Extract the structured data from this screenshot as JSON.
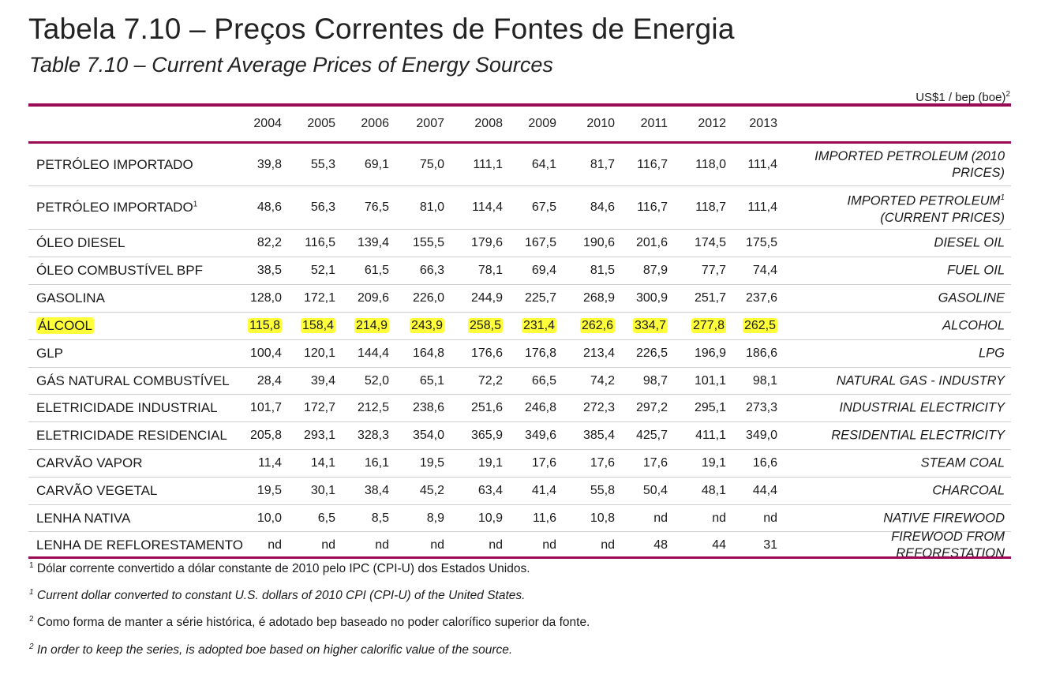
{
  "title": "Tabela 7.10 – Preços Correntes de Fontes de Energia",
  "subtitle": "Table 7.10 – Current Average Prices of Energy Sources",
  "unit": "US$1 / bep (boe)",
  "unit_sup": "2",
  "highlight_color": "#ffff3a",
  "accent_color": "#9b0b55",
  "years": [
    "2004",
    "2005",
    "2006",
    "2007",
    "2008",
    "2009",
    "2010",
    "2011",
    "2012",
    "2013"
  ],
  "rows": [
    {
      "pt": "PETRÓLEO IMPORTADO",
      "pt_sup": "",
      "en": "IMPORTED PETROLEUM (2010 PRICES)",
      "en_sup": "",
      "values": [
        "39,8",
        "55,3",
        "69,1",
        "75,0",
        "111,1",
        "64,1",
        "81,7",
        "116,7",
        "118,0",
        "111,4"
      ],
      "highlighted": false
    },
    {
      "pt": "PETRÓLEO IMPORTADO",
      "pt_sup": "1",
      "en": "IMPORTED PETROLEUM",
      "en_sup": "1",
      "en_rest": " (CURRENT PRICES)",
      "values": [
        "48,6",
        "56,3",
        "76,5",
        "81,0",
        "114,4",
        "67,5",
        "84,6",
        "116,7",
        "118,7",
        "111,4"
      ],
      "highlighted": false
    },
    {
      "pt": "ÓLEO DIESEL",
      "pt_sup": "",
      "en": "DIESEL OIL",
      "en_sup": "",
      "values": [
        "82,2",
        "116,5",
        "139,4",
        "155,5",
        "179,6",
        "167,5",
        "190,6",
        "201,6",
        "174,5",
        "175,5"
      ],
      "highlighted": false
    },
    {
      "pt": "ÓLEO COMBUSTÍVEL BPF",
      "pt_sup": "",
      "en": "FUEL OIL",
      "en_sup": "",
      "values": [
        "38,5",
        "52,1",
        "61,5",
        "66,3",
        "78,1",
        "69,4",
        "81,5",
        "87,9",
        "77,7",
        "74,4"
      ],
      "highlighted": false
    },
    {
      "pt": "GASOLINA",
      "pt_sup": "",
      "en": "GASOLINE",
      "en_sup": "",
      "values": [
        "128,0",
        "172,1",
        "209,6",
        "226,0",
        "244,9",
        "225,7",
        "268,9",
        "300,9",
        "251,7",
        "237,6"
      ],
      "highlighted": false
    },
    {
      "pt": "ÁLCOOL",
      "pt_sup": "",
      "en": "ALCOHOL",
      "en_sup": "",
      "values": [
        "115,8",
        "158,4",
        "214,9",
        "243,9",
        "258,5",
        "231,4",
        "262,6",
        "334,7",
        "277,8",
        "262,5"
      ],
      "highlighted": true
    },
    {
      "pt": "GLP",
      "pt_sup": "",
      "en": "LPG",
      "en_sup": "",
      "values": [
        "100,4",
        "120,1",
        "144,4",
        "164,8",
        "176,6",
        "176,8",
        "213,4",
        "226,5",
        "196,9",
        "186,6"
      ],
      "highlighted": false
    },
    {
      "pt": "GÁS NATURAL COMBUSTÍVEL",
      "pt_sup": "",
      "en": "NATURAL GAS - INDUSTRY",
      "en_sup": "",
      "values": [
        "28,4",
        "39,4",
        "52,0",
        "65,1",
        "72,2",
        "66,5",
        "74,2",
        "98,7",
        "101,1",
        "98,1"
      ],
      "highlighted": false
    },
    {
      "pt": "ELETRICIDADE INDUSTRIAL",
      "pt_sup": "",
      "en": "INDUSTRIAL ELECTRICITY",
      "en_sup": "",
      "values": [
        "101,7",
        "172,7",
        "212,5",
        "238,6",
        "251,6",
        "246,8",
        "272,3",
        "297,2",
        "295,1",
        "273,3"
      ],
      "highlighted": false
    },
    {
      "pt": "ELETRICIDADE RESIDENCIAL",
      "pt_sup": "",
      "en": "RESIDENTIAL ELECTRICITY",
      "en_sup": "",
      "values": [
        "205,8",
        "293,1",
        "328,3",
        "354,0",
        "365,9",
        "349,6",
        "385,4",
        "425,7",
        "411,1",
        "349,0"
      ],
      "highlighted": false
    },
    {
      "pt": "CARVÃO VAPOR",
      "pt_sup": "",
      "en": "STEAM COAL",
      "en_sup": "",
      "values": [
        "11,4",
        "14,1",
        "16,1",
        "19,5",
        "19,1",
        "17,6",
        "17,6",
        "17,6",
        "19,1",
        "16,6"
      ],
      "highlighted": false
    },
    {
      "pt": "CARVÃO VEGETAL",
      "pt_sup": "",
      "en": "CHARCOAL",
      "en_sup": "",
      "values": [
        "19,5",
        "30,1",
        "38,4",
        "45,2",
        "63,4",
        "41,4",
        "55,8",
        "50,4",
        "48,1",
        "44,4"
      ],
      "highlighted": false
    },
    {
      "pt": "LENHA NATIVA",
      "pt_sup": "",
      "en": "NATIVE FIREWOOD",
      "en_sup": "",
      "values": [
        "10,0",
        "6,5",
        "8,5",
        "8,9",
        "10,9",
        "11,6",
        "10,8",
        "nd",
        "nd",
        "nd"
      ],
      "highlighted": false
    },
    {
      "pt": "LENHA DE REFLORESTAMENTO",
      "pt_sup": "",
      "en": "FIREWOOD FROM REFORESTATION",
      "en_sup": "",
      "values": [
        "nd",
        "nd",
        "nd",
        "nd",
        "nd",
        "nd",
        "nd",
        "48",
        "44",
        "31"
      ],
      "highlighted": false
    }
  ],
  "footnotes": [
    {
      "sup": "1",
      "text": " Dólar corrente convertido a dólar constante de 2010 pelo IPC (CPI-U) dos Estados Unidos.",
      "italic": false
    },
    {
      "sup": "1",
      "text": " Current dollar converted to constant U.S. dollars of 2010 CPI (CPI-U) of the United States.",
      "italic": true
    },
    {
      "sup": "2",
      "text": " Como forma de manter a série histórica, é adotado bep baseado no poder calorífico superior da fonte.",
      "italic": false
    },
    {
      "sup": "2",
      "text": " In order to keep the series, is adopted boe based on higher calorific value of the source.",
      "italic": true
    }
  ]
}
